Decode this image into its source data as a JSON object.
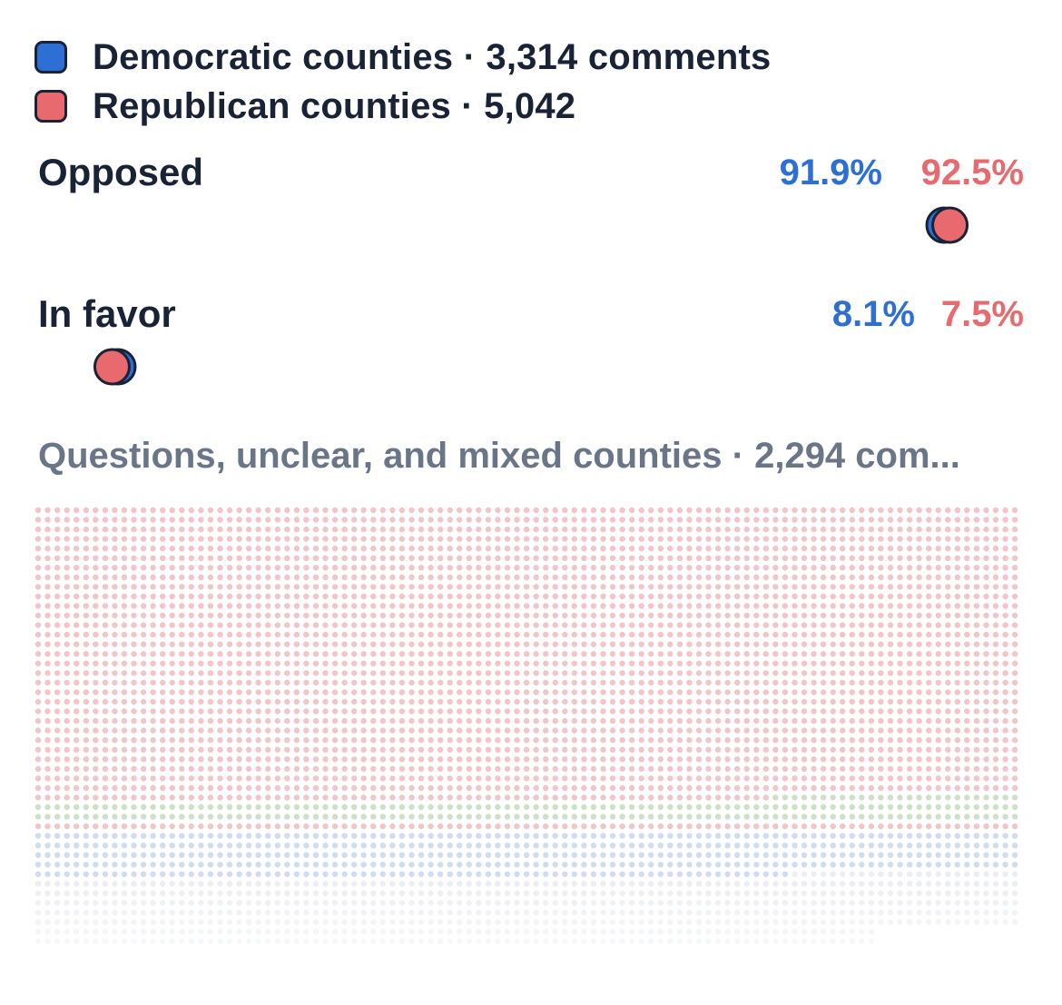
{
  "legend": {
    "democratic_label": "Democratic counties · 3,314 comments",
    "republican_label": "Republican counties · 5,042"
  },
  "colors": {
    "democratic": "#2e6fd6",
    "republican": "#e86a6e",
    "text": "#1a2236",
    "muted": "#6a7587",
    "connector": "#e4e7ee",
    "dot_pink": "#f3c4c9",
    "dot_green": "#cde0c8",
    "dot_blue": "#cfdcf1",
    "dot_gray": "#eceef1"
  },
  "chart_data": {
    "type": "dot_plot",
    "x_range": [
      0,
      100
    ],
    "series": [
      {
        "name": "Democratic counties",
        "comments": 3314
      },
      {
        "name": "Republican counties",
        "comments": 5042
      }
    ],
    "rows": [
      {
        "label": "Opposed",
        "dem": 91.9,
        "rep": 92.5,
        "dem_label": "91.9%",
        "rep_label": "92.5%"
      },
      {
        "label": "In favor",
        "dem": 8.1,
        "rep": 7.5,
        "dem_label": "8.1%",
        "rep_label": "7.5%"
      }
    ]
  },
  "unclear": {
    "title": "Questions, unclear, and mixed counties · 2,294 com..."
  }
}
